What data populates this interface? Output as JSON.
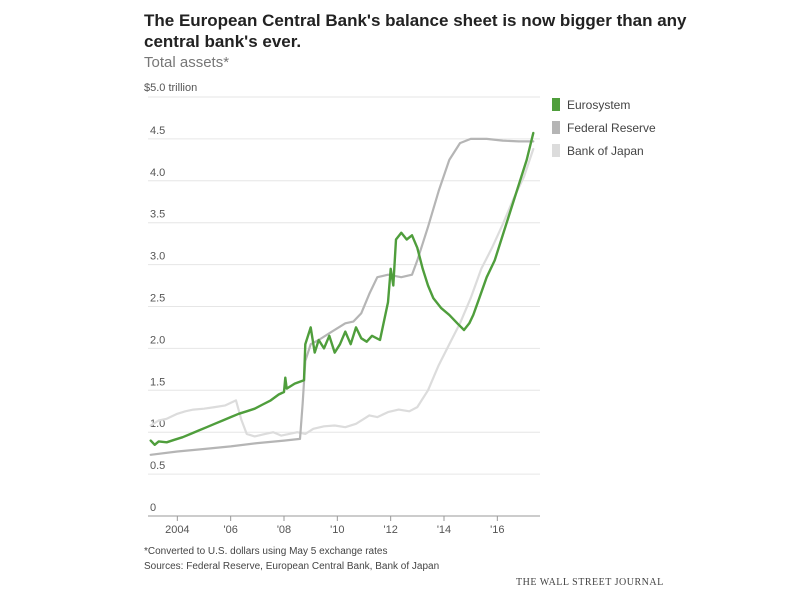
{
  "chart_data": {
    "type": "line",
    "title": "The European Central Bank's balance sheet is now bigger than any central bank's ever.",
    "subtitle": "Total assets*",
    "xlabel": "",
    "ylabel": "",
    "unit_label": "$5.0 trillion",
    "xlim": [
      2002.9,
      2017.6
    ],
    "ylim": [
      0,
      5.0
    ],
    "grid": true,
    "legend_position": "top-right",
    "x_ticks": [
      {
        "value": 2004,
        "label": "2004"
      },
      {
        "value": 2006,
        "label": "'06"
      },
      {
        "value": 2008,
        "label": "'08"
      },
      {
        "value": 2010,
        "label": "'10"
      },
      {
        "value": 2012,
        "label": "'12"
      },
      {
        "value": 2014,
        "label": "'14"
      },
      {
        "value": 2016,
        "label": "'16"
      }
    ],
    "y_ticks": [
      {
        "value": 0,
        "label": "0"
      },
      {
        "value": 0.5,
        "label": "0.5"
      },
      {
        "value": 1.0,
        "label": "1.0"
      },
      {
        "value": 1.5,
        "label": "1.5"
      },
      {
        "value": 2.0,
        "label": "2.0"
      },
      {
        "value": 2.5,
        "label": "2.5"
      },
      {
        "value": 3.0,
        "label": "3.0"
      },
      {
        "value": 3.5,
        "label": "3.5"
      },
      {
        "value": 4.0,
        "label": "4.0"
      },
      {
        "value": 4.5,
        "label": "4.5"
      }
    ],
    "series": [
      {
        "name": "Bank of Japan",
        "color": "#dcdcdc",
        "points": [
          [
            2003.0,
            1.08
          ],
          [
            2003.3,
            1.14
          ],
          [
            2003.6,
            1.16
          ],
          [
            2004.0,
            1.22
          ],
          [
            2004.3,
            1.25
          ],
          [
            2004.6,
            1.27
          ],
          [
            2005.0,
            1.28
          ],
          [
            2005.4,
            1.3
          ],
          [
            2005.8,
            1.32
          ],
          [
            2006.2,
            1.38
          ],
          [
            2006.4,
            1.15
          ],
          [
            2006.6,
            0.98
          ],
          [
            2006.9,
            0.95
          ],
          [
            2007.3,
            0.98
          ],
          [
            2007.6,
            1.0
          ],
          [
            2007.9,
            0.96
          ],
          [
            2008.2,
            0.98
          ],
          [
            2008.5,
            1.0
          ],
          [
            2008.8,
            0.98
          ],
          [
            2009.1,
            1.04
          ],
          [
            2009.5,
            1.07
          ],
          [
            2009.9,
            1.08
          ],
          [
            2010.3,
            1.06
          ],
          [
            2010.7,
            1.1
          ],
          [
            2011.0,
            1.16
          ],
          [
            2011.2,
            1.2
          ],
          [
            2011.5,
            1.18
          ],
          [
            2011.9,
            1.24
          ],
          [
            2012.3,
            1.27
          ],
          [
            2012.7,
            1.25
          ],
          [
            2013.0,
            1.3
          ],
          [
            2013.4,
            1.5
          ],
          [
            2013.8,
            1.8
          ],
          [
            2014.2,
            2.05
          ],
          [
            2014.6,
            2.3
          ],
          [
            2015.0,
            2.6
          ],
          [
            2015.4,
            2.95
          ],
          [
            2015.8,
            3.2
          ],
          [
            2016.2,
            3.48
          ],
          [
            2016.6,
            3.78
          ],
          [
            2017.0,
            4.05
          ],
          [
            2017.35,
            4.38
          ]
        ]
      },
      {
        "name": "Federal Reserve",
        "color": "#b5b5b5",
        "points": [
          [
            2003.0,
            0.73
          ],
          [
            2004.0,
            0.77
          ],
          [
            2005.0,
            0.8
          ],
          [
            2006.0,
            0.83
          ],
          [
            2007.0,
            0.87
          ],
          [
            2008.0,
            0.9
          ],
          [
            2008.6,
            0.92
          ],
          [
            2008.7,
            1.35
          ],
          [
            2008.8,
            1.85
          ],
          [
            2009.0,
            2.05
          ],
          [
            2009.3,
            2.1
          ],
          [
            2009.8,
            2.2
          ],
          [
            2010.3,
            2.3
          ],
          [
            2010.6,
            2.32
          ],
          [
            2010.9,
            2.42
          ],
          [
            2011.2,
            2.65
          ],
          [
            2011.5,
            2.85
          ],
          [
            2011.9,
            2.88
          ],
          [
            2012.4,
            2.85
          ],
          [
            2012.8,
            2.88
          ],
          [
            2013.0,
            3.05
          ],
          [
            2013.4,
            3.45
          ],
          [
            2013.8,
            3.88
          ],
          [
            2014.2,
            4.25
          ],
          [
            2014.6,
            4.45
          ],
          [
            2015.0,
            4.5
          ],
          [
            2015.6,
            4.5
          ],
          [
            2016.2,
            4.48
          ],
          [
            2016.8,
            4.47
          ],
          [
            2017.35,
            4.47
          ]
        ]
      },
      {
        "name": "Eurosystem",
        "color": "#4f9e3c",
        "points": [
          [
            2003.0,
            0.9
          ],
          [
            2003.15,
            0.85
          ],
          [
            2003.3,
            0.89
          ],
          [
            2003.6,
            0.88
          ],
          [
            2003.9,
            0.91
          ],
          [
            2004.2,
            0.94
          ],
          [
            2004.5,
            0.98
          ],
          [
            2004.8,
            1.02
          ],
          [
            2005.1,
            1.06
          ],
          [
            2005.4,
            1.1
          ],
          [
            2005.7,
            1.14
          ],
          [
            2006.0,
            1.18
          ],
          [
            2006.3,
            1.22
          ],
          [
            2006.6,
            1.25
          ],
          [
            2006.9,
            1.28
          ],
          [
            2007.2,
            1.33
          ],
          [
            2007.5,
            1.38
          ],
          [
            2007.8,
            1.45
          ],
          [
            2008.0,
            1.48
          ],
          [
            2008.05,
            1.65
          ],
          [
            2008.1,
            1.52
          ],
          [
            2008.4,
            1.58
          ],
          [
            2008.75,
            1.62
          ],
          [
            2008.8,
            2.05
          ],
          [
            2009.0,
            2.25
          ],
          [
            2009.15,
            1.95
          ],
          [
            2009.3,
            2.1
          ],
          [
            2009.5,
            2.0
          ],
          [
            2009.7,
            2.15
          ],
          [
            2009.9,
            1.95
          ],
          [
            2010.1,
            2.05
          ],
          [
            2010.3,
            2.2
          ],
          [
            2010.5,
            2.05
          ],
          [
            2010.7,
            2.25
          ],
          [
            2010.9,
            2.12
          ],
          [
            2011.1,
            2.08
          ],
          [
            2011.3,
            2.15
          ],
          [
            2011.6,
            2.1
          ],
          [
            2011.9,
            2.55
          ],
          [
            2012.0,
            2.95
          ],
          [
            2012.1,
            2.75
          ],
          [
            2012.2,
            3.3
          ],
          [
            2012.4,
            3.38
          ],
          [
            2012.6,
            3.3
          ],
          [
            2012.8,
            3.35
          ],
          [
            2013.0,
            3.2
          ],
          [
            2013.2,
            2.95
          ],
          [
            2013.4,
            2.75
          ],
          [
            2013.6,
            2.6
          ],
          [
            2013.9,
            2.48
          ],
          [
            2014.2,
            2.4
          ],
          [
            2014.5,
            2.3
          ],
          [
            2014.75,
            2.22
          ],
          [
            2014.95,
            2.3
          ],
          [
            2015.1,
            2.4
          ],
          [
            2015.3,
            2.58
          ],
          [
            2015.6,
            2.85
          ],
          [
            2015.9,
            3.05
          ],
          [
            2016.2,
            3.35
          ],
          [
            2016.5,
            3.65
          ],
          [
            2016.8,
            3.95
          ],
          [
            2017.1,
            4.25
          ],
          [
            2017.35,
            4.57
          ]
        ]
      }
    ],
    "footnote": "*Converted to U.S. dollars using May 5 exchange rates",
    "sources": "Sources: Federal Reserve, European Central Bank, Bank of Japan",
    "credit": "THE WALL STREET JOURNAL"
  },
  "legend": [
    {
      "label": "Eurosystem",
      "color": "#4f9e3c"
    },
    {
      "label": "Federal Reserve",
      "color": "#b5b5b5"
    },
    {
      "label": "Bank of Japan",
      "color": "#dcdcdc"
    }
  ]
}
